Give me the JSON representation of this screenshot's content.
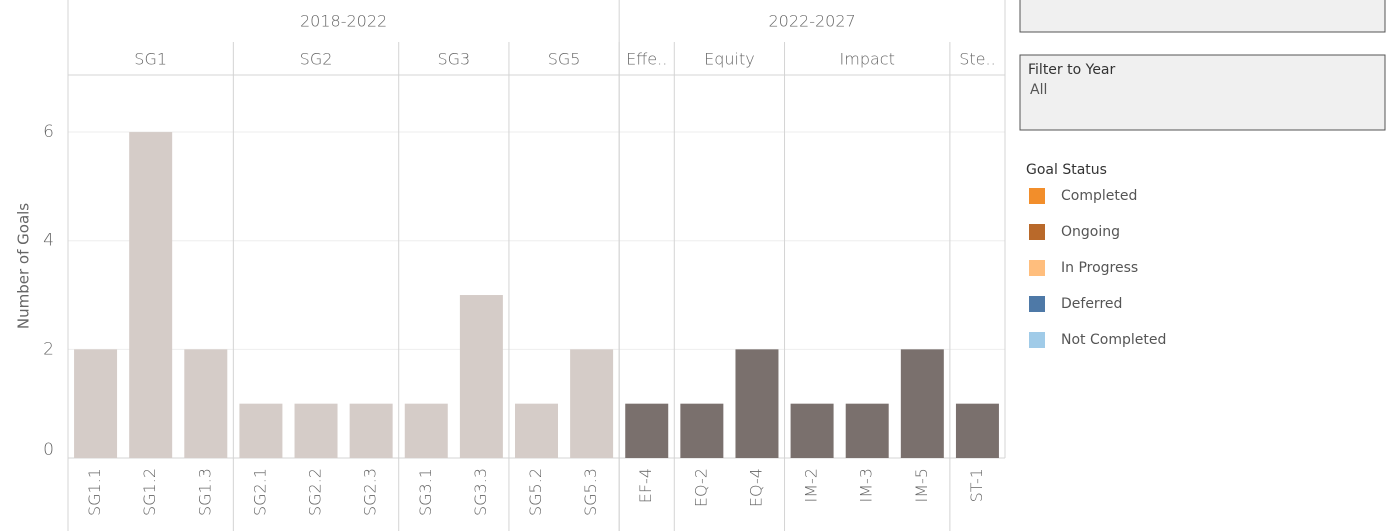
{
  "chart_data": {
    "type": "bar",
    "y_label": "Number of Goals",
    "categories": [
      "SG1.1",
      "SG1.2",
      "SG1.3",
      "SG2.1",
      "SG2.2",
      "SG2.3",
      "SG3.1",
      "SG3.3",
      "SG5.2",
      "SG5.3",
      "EF-4",
      "EQ-2",
      "EQ-4",
      "IM-2",
      "IM-3",
      "IM-5",
      "ST-1"
    ],
    "values": [
      2,
      6,
      2,
      1,
      1,
      1,
      1,
      3,
      1,
      2,
      1,
      1,
      2,
      1,
      1,
      2,
      1
    ],
    "colors": [
      "#d5ccc8",
      "#d5ccc8",
      "#d5ccc8",
      "#d5ccc8",
      "#d5ccc8",
      "#d5ccc8",
      "#d5ccc8",
      "#d5ccc8",
      "#d5ccc8",
      "#d5ccc8",
      "#7a706d",
      "#7a706d",
      "#7a706d",
      "#7a706d",
      "#7a706d",
      "#7a706d",
      "#7a706d"
    ],
    "periods": [
      {
        "name": "2018-2022",
        "span": 10
      },
      {
        "name": "2022-2027",
        "span": 7
      }
    ],
    "groups": [
      {
        "name": "SG1",
        "span": 3
      },
      {
        "name": "SG2",
        "span": 3
      },
      {
        "name": "SG3",
        "span": 2
      },
      {
        "name": "SG5",
        "span": 2
      },
      {
        "name": "Effe..",
        "span": 1
      },
      {
        "name": "Equity",
        "span": 2
      },
      {
        "name": "Impact",
        "span": 3
      },
      {
        "name": "Ste..",
        "span": 1
      }
    ],
    "ylim": [
      0,
      7.05
    ],
    "yticks": [
      0,
      2,
      4,
      6
    ],
    "grid": true
  },
  "filter": {
    "title": "Filter to Year",
    "value": "All"
  },
  "legend": {
    "title": "Goal Status",
    "items": [
      {
        "name": "Completed",
        "color": "#f28e2b"
      },
      {
        "name": "Ongoing",
        "color": "#b9692a"
      },
      {
        "name": "In Progress",
        "color": "#ffbe7d"
      },
      {
        "name": "Deferred",
        "color": "#4e79a7"
      },
      {
        "name": "Not Completed",
        "color": "#a0cbe8"
      }
    ]
  }
}
